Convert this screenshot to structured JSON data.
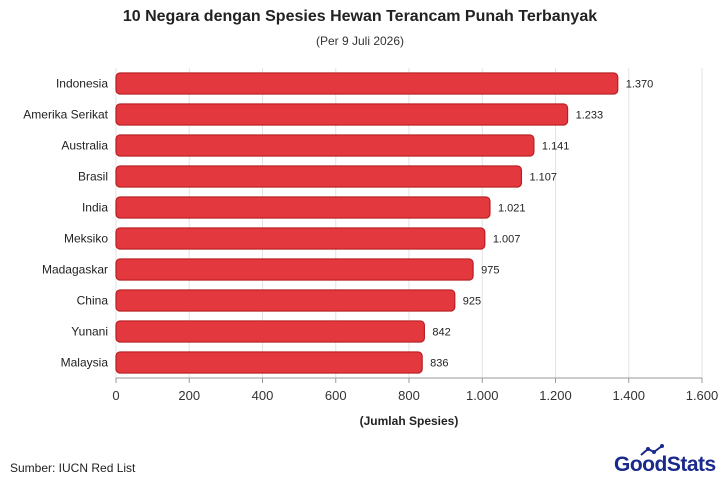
{
  "chart_data": {
    "type": "bar",
    "orientation": "horizontal",
    "title": "10 Negara dengan Spesies Hewan Terancam Punah Terbanyak",
    "subtitle": "(Per 9 Juli 2026)",
    "xlabel": "(Jumlah Spesies)",
    "categories": [
      "Indonesia",
      "Amerika Serikat",
      "Australia",
      "Brasil",
      "India",
      "Meksiko",
      "Madagaskar",
      "China",
      "Yunani",
      "Malaysia"
    ],
    "values": [
      1370,
      1233,
      1141,
      1107,
      1021,
      1007,
      975,
      925,
      842,
      836
    ],
    "value_labels": [
      "1.370",
      "1.233",
      "1.141",
      "1.107",
      "1.021",
      "1.007",
      "975",
      "925",
      "842",
      "836"
    ],
    "xlim": [
      0,
      1600
    ],
    "x_ticks": [
      0,
      200,
      400,
      600,
      800,
      1000,
      1200,
      1400,
      1600
    ],
    "x_tick_labels": [
      "0",
      "200",
      "400",
      "600",
      "800",
      "1.000",
      "1.200",
      "1.400",
      "1.600"
    ],
    "grid": true,
    "bar_color": "#e3393e",
    "bar_edge_color": "#b81d22"
  },
  "footer": {
    "source": "Sumber: IUCN Red List",
    "brand": "GoodStats",
    "brand_color": "#1a2a8c"
  }
}
